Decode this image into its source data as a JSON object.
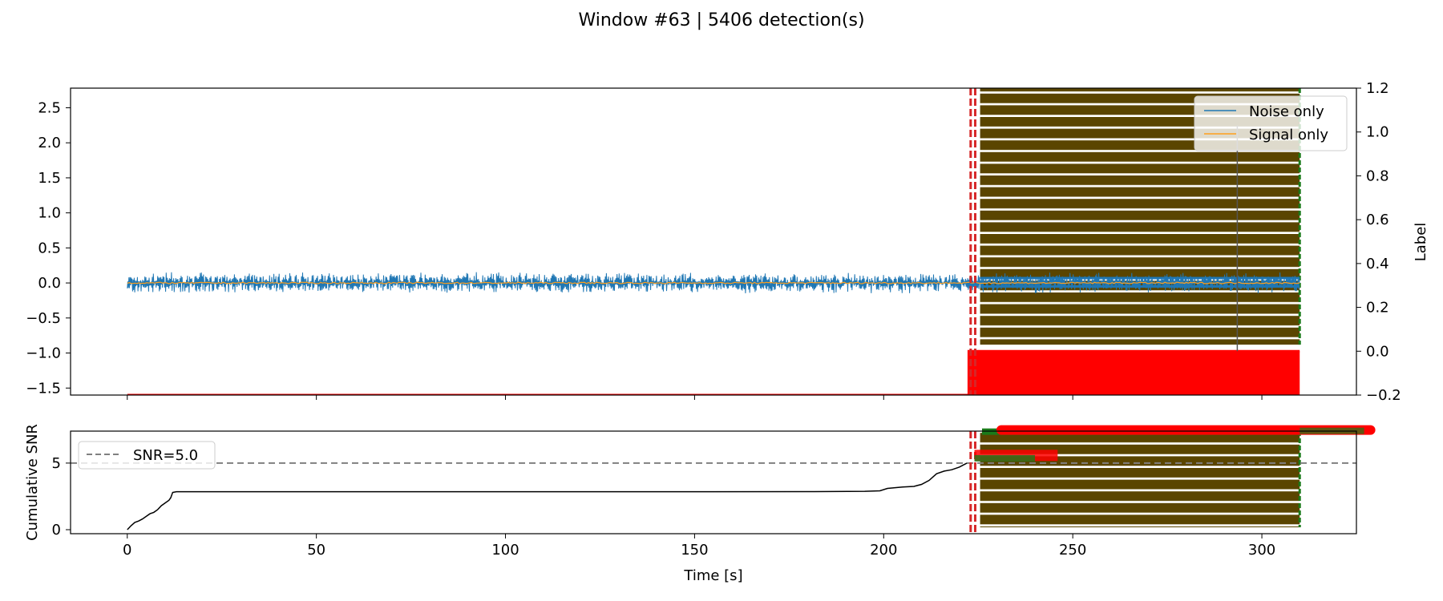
{
  "chart_data": [
    {
      "type": "line",
      "suptitle": "Window #63 | 5406 detection(s)",
      "xlabel": "",
      "ylabel": "",
      "ylabel_right": "Label",
      "xlim": [
        -15,
        325
      ],
      "ylim": [
        -1.6,
        2.78
      ],
      "ylim_right": [
        -0.2,
        1.2
      ],
      "yticks": [
        -1.5,
        -1.0,
        -0.5,
        0.0,
        0.5,
        1.0,
        1.5,
        2.0,
        2.5
      ],
      "yticks_right": [
        -0.2,
        0.0,
        0.2,
        0.4,
        0.6,
        0.8,
        1.0,
        1.2
      ],
      "ytick_labels": [
        "−1.5",
        "−1.0",
        "−0.5",
        "0.0",
        "0.5",
        "1.0",
        "1.5",
        "2.0",
        "2.5"
      ],
      "ytick_labels_right": [
        "−0.2",
        "0.0",
        "0.2",
        "0.4",
        "0.6",
        "0.8",
        "1.0",
        "1.2"
      ],
      "legend_position": "top-right",
      "series": [
        {
          "name": "Noise only",
          "color": "#1f77b4",
          "x_range": [
            0,
            310
          ],
          "amplitude": 0.1
        },
        {
          "name": "Signal only",
          "color": "#ff9f1c",
          "x_range": [
            0,
            310
          ],
          "amplitude": 0.01
        }
      ],
      "label_series": {
        "color": "#ff0000",
        "x": [
          0,
          222.5,
          222.5,
          310
        ],
        "y": [
          -0.2,
          -0.2,
          0.0,
          0.0
        ]
      },
      "detection_band": {
        "x_start": 225.5,
        "x_end": 310,
        "color": "#5a4500",
        "edge_color": "#1a7a1a"
      },
      "detection_lines": {
        "x": [
          223,
          224.2
        ],
        "color": "#d62728"
      },
      "grey_line_x": 293.5
    },
    {
      "type": "line",
      "xlabel": "Time [s]",
      "ylabel": "Cumulative SNR",
      "xlim": [
        -15,
        325
      ],
      "ylim": [
        -0.3,
        7.4
      ],
      "xticks": [
        0,
        50,
        100,
        150,
        200,
        250,
        300
      ],
      "yticks": [
        0,
        5
      ],
      "legend_position": "upper-left",
      "threshold": {
        "name": "SNR=5.0",
        "value": 5.0,
        "color": "#808080"
      },
      "series": [
        {
          "name": "",
          "color": "#000000",
          "x": [
            0,
            1,
            2,
            3,
            4,
            5,
            6,
            7,
            8,
            9,
            10,
            11,
            11.5,
            12,
            13,
            30,
            60,
            100,
            150,
            180,
            195,
            199,
            201,
            205,
            208,
            210,
            212,
            214,
            216,
            218,
            220,
            222
          ],
          "y": [
            0,
            0.3,
            0.55,
            0.65,
            0.8,
            1.0,
            1.2,
            1.3,
            1.5,
            1.8,
            2.0,
            2.2,
            2.4,
            2.8,
            2.85,
            2.85,
            2.85,
            2.85,
            2.85,
            2.86,
            2.88,
            2.92,
            3.1,
            3.2,
            3.25,
            3.4,
            3.7,
            4.2,
            4.4,
            4.5,
            4.7,
            5.0
          ]
        }
      ],
      "detection_band": {
        "x_start": 225.5,
        "x_end": 310,
        "color": "#5a4500",
        "edge_color": "#1a7a1a"
      },
      "detection_lines": {
        "x": [
          223,
          224.2
        ],
        "color": "#d62728"
      },
      "annotation_band": {
        "x_start": 226,
        "x_end": 330,
        "y": 7.3,
        "color": "#ff0000",
        "edge_color": "#1a7a1a"
      }
    }
  ]
}
